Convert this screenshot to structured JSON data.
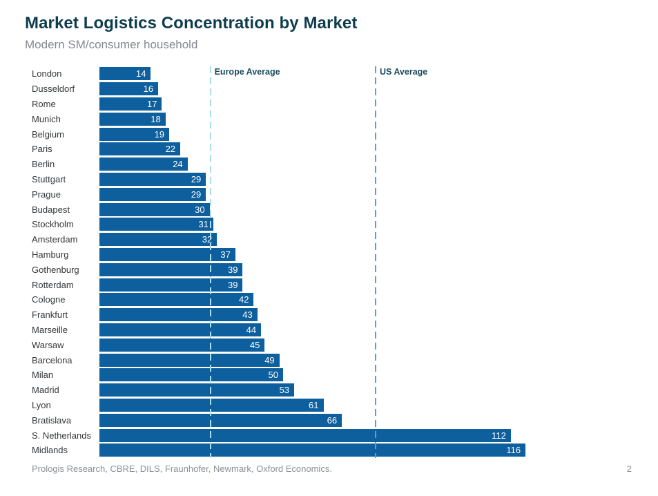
{
  "header": {
    "title": "Market Logistics Concentration by Market",
    "subtitle": "Modern SM/consumer household"
  },
  "chart_data": {
    "type": "bar",
    "orientation": "horizontal",
    "categories": [
      "London",
      "Dusseldorf",
      "Rome",
      "Munich",
      "Belgium",
      "Paris",
      "Berlin",
      "Stuttgart",
      "Prague",
      "Budapest",
      "Stockholm",
      "Amsterdam",
      "Hamburg",
      "Gothenburg",
      "Rotterdam",
      "Cologne",
      "Frankfurt",
      "Marseille",
      "Warsaw",
      "Barcelona",
      "Milan",
      "Madrid",
      "Lyon",
      "Bratislava",
      "S. Netherlands",
      "Midlands"
    ],
    "values": [
      14,
      16,
      17,
      18,
      19,
      22,
      24,
      29,
      29,
      30,
      31,
      32,
      37,
      39,
      39,
      42,
      43,
      44,
      45,
      49,
      50,
      53,
      61,
      66,
      112,
      116
    ],
    "value_labels_shown": true,
    "bar_color": "#0e5f9d",
    "value_label_color": "#ffffff",
    "xlim": [
      0,
      152
    ],
    "grid": false,
    "legend": "none",
    "reference_lines": [
      {
        "label": "Europe Average",
        "value": 30,
        "color": "#a9dde9"
      },
      {
        "label": "US Average",
        "value": 75,
        "color": "#58a0cf"
      }
    ]
  },
  "footer": {
    "source": "Prologis Research, CBRE, DILS, Fraunhofer, Newmark, Oxford Economics.",
    "page_number": "2"
  }
}
